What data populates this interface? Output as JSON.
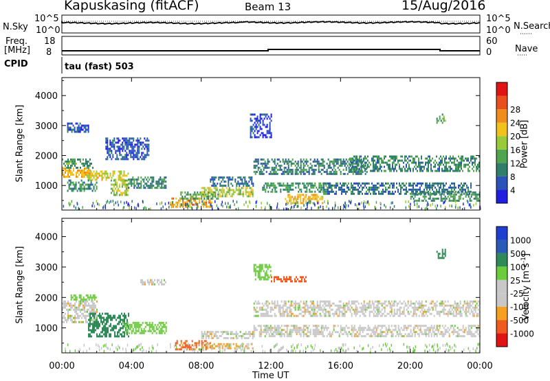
{
  "header": {
    "station": "Kapuskasing (fitACF)",
    "beam": "Beam 13",
    "date": "15/Aug/2016"
  },
  "strips": {
    "nsky_label": "N.Sky",
    "nsearch_label": "N.Search",
    "freq_label": "Freq.",
    "freq_unit": "[MHz]",
    "nave_label": "Nave",
    "cpid_label": "CPID",
    "cpid_value": "tau (fast) 503",
    "noise_ticks": [
      "10^5",
      "10^0"
    ],
    "noise_ticks_right": [
      "10^5",
      "10^0"
    ],
    "freq_ticks": [
      "18",
      "8"
    ],
    "nave_ticks": [
      "60",
      "0"
    ]
  },
  "colors": {
    "power": [
      "#1f1fe0",
      "#2a52b8",
      "#2f7d6b",
      "#4fa64f",
      "#9ac93a",
      "#f2c21c",
      "#f08c1c",
      "#e8501e",
      "#e01414"
    ],
    "velocity": [
      "#e01414",
      "#f05a1e",
      "#f5a01e",
      "#c8c8c8",
      "#c8c8c8",
      "#6bcc3c",
      "#2e8b57",
      "#2a5ab8",
      "#1f3fd0"
    ]
  },
  "chart_data": [
    {
      "type": "heatmap",
      "name": "power",
      "xlabel": "Time UT",
      "ylabel": "Slant Range [km]",
      "x_ticks": [
        "00:00",
        "04:00",
        "08:00",
        "12:00",
        "16:00",
        "20:00",
        "00:00"
      ],
      "y_ticks": [
        1000,
        2000,
        3000,
        4000
      ],
      "xlim": [
        0,
        24
      ],
      "ylim": [
        180,
        4600
      ],
      "colorbar_label": "Power [dB]",
      "colorbar_ticks": [
        4,
        8,
        12,
        16,
        20,
        24,
        28
      ],
      "clim": [
        0,
        32
      ],
      "regions": [
        {
          "t0": 0.0,
          "t1": 1.6,
          "r0": 1300,
          "r1": 1600,
          "v": 24
        },
        {
          "t0": 0.0,
          "t1": 1.8,
          "r0": 1600,
          "r1": 1900,
          "v": 13
        },
        {
          "t0": 1.4,
          "t1": 3.8,
          "r0": 1200,
          "r1": 1500,
          "v": 21
        },
        {
          "t0": 2.8,
          "t1": 3.8,
          "r0": 700,
          "r1": 1200,
          "v": 18
        },
        {
          "t0": 0.3,
          "t1": 2.0,
          "r0": 800,
          "r1": 1200,
          "v": 11
        },
        {
          "t0": 2.5,
          "t1": 5.0,
          "r0": 1900,
          "r1": 2600,
          "v": 6
        },
        {
          "t0": 3.8,
          "t1": 6.0,
          "r0": 900,
          "r1": 1300,
          "v": 11
        },
        {
          "t0": 6.2,
          "t1": 8.6,
          "r0": 300,
          "r1": 600,
          "v": 25
        },
        {
          "t0": 6.8,
          "t1": 9.0,
          "r0": 550,
          "r1": 800,
          "v": 13
        },
        {
          "t0": 8.0,
          "t1": 11.0,
          "r0": 650,
          "r1": 950,
          "v": 19
        },
        {
          "t0": 8.5,
          "t1": 11.0,
          "r0": 1000,
          "r1": 1300,
          "v": 8
        },
        {
          "t0": 11.0,
          "t1": 17.5,
          "r0": 1400,
          "r1": 1900,
          "v": 10
        },
        {
          "t0": 11.5,
          "t1": 15.5,
          "r0": 800,
          "r1": 1100,
          "v": 12
        },
        {
          "t0": 12.8,
          "t1": 15.0,
          "r0": 380,
          "r1": 720,
          "v": 23
        },
        {
          "t0": 15.0,
          "t1": 23.5,
          "r0": 700,
          "r1": 1100,
          "v": 9
        },
        {
          "t0": 16.5,
          "t1": 24.0,
          "r0": 1500,
          "r1": 2000,
          "v": 11
        },
        {
          "t0": 20.0,
          "t1": 24.0,
          "r0": 500,
          "r1": 800,
          "v": 12
        },
        {
          "t0": 10.8,
          "t1": 12.0,
          "r0": 2600,
          "r1": 3400,
          "v": 5
        },
        {
          "t0": 0.3,
          "t1": 1.5,
          "r0": 2800,
          "r1": 3100,
          "v": 6
        },
        {
          "t0": 21.5,
          "t1": 22.0,
          "r0": 3100,
          "r1": 3400,
          "v": 14
        }
      ]
    },
    {
      "type": "heatmap",
      "name": "velocity",
      "xlabel": "Time UT",
      "ylabel": "Slant Range [km]",
      "x_ticks": [
        "00:00",
        "04:00",
        "08:00",
        "12:00",
        "16:00",
        "20:00",
        "00:00"
      ],
      "y_ticks": [
        1000,
        2000,
        3000,
        4000
      ],
      "xlim": [
        0,
        24
      ],
      "ylim": [
        180,
        4600
      ],
      "colorbar_label": "Velocity [m s^-1]",
      "colorbar_ticks": [
        1000,
        500,
        100,
        25,
        -25,
        -100,
        -500,
        -1000
      ],
      "regions": [
        {
          "t0": 0.0,
          "t1": 2.0,
          "r0": 1200,
          "r1": 1900,
          "v": 0
        },
        {
          "t0": 1.5,
          "t1": 3.8,
          "r0": 700,
          "r1": 1500,
          "v": 150
        },
        {
          "t0": 0.5,
          "t1": 2.0,
          "r0": 1900,
          "r1": 2100,
          "v": 60
        },
        {
          "t0": 4.5,
          "t1": 6.0,
          "r0": 2400,
          "r1": 2600,
          "v": 0
        },
        {
          "t0": 3.5,
          "t1": 6.0,
          "r0": 800,
          "r1": 1200,
          "v": 60
        },
        {
          "t0": 6.5,
          "t1": 8.5,
          "r0": 300,
          "r1": 600,
          "v": -120
        },
        {
          "t0": 8.0,
          "t1": 11.0,
          "r0": 300,
          "r1": 500,
          "v": -40
        },
        {
          "t0": 8.0,
          "t1": 11.0,
          "r0": 650,
          "r1": 900,
          "v": 0
        },
        {
          "t0": 11.0,
          "t1": 24.0,
          "r0": 1400,
          "r1": 1900,
          "v": 0
        },
        {
          "t0": 11.0,
          "t1": 24.0,
          "r0": 700,
          "r1": 1100,
          "v": 0
        },
        {
          "t0": 12.0,
          "t1": 14.0,
          "r0": 2500,
          "r1": 2700,
          "v": -200
        },
        {
          "t0": 21.5,
          "t1": 22.0,
          "r0": 3300,
          "r1": 3600,
          "v": 150
        },
        {
          "t0": 11.0,
          "t1": 12.0,
          "r0": 2600,
          "r1": 3100,
          "v": 60
        }
      ]
    }
  ]
}
